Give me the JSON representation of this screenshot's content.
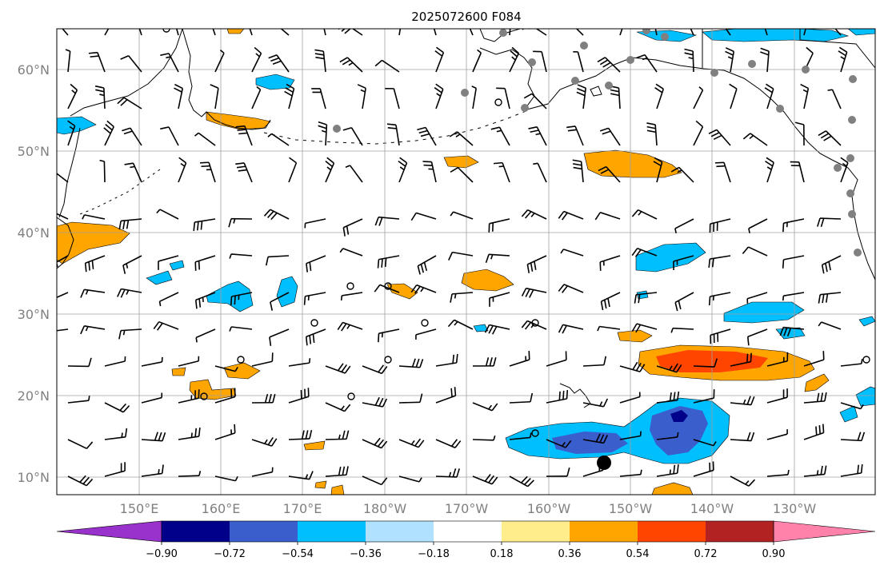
{
  "title": "2025072600 F084",
  "map": {
    "lat_labels": [
      "10°N",
      "20°N",
      "30°N",
      "40°N",
      "50°N",
      "60°N"
    ],
    "lon_labels": [
      "150°E",
      "160°E",
      "170°E",
      "180°W",
      "170°W",
      "160°W",
      "150°W",
      "140°W",
      "130°W"
    ],
    "grid": true
  },
  "colorbar": {
    "tick_labels": [
      "−0.90",
      "−0.72",
      "−0.54",
      "−0.36",
      "−0.18",
      "0.18",
      "0.36",
      "0.54",
      "0.72",
      "0.90"
    ],
    "colors": [
      "#9932cc",
      "#00008b",
      "#3a5fcd",
      "#00bfff",
      "#b0e2ff",
      "#ffffff",
      "#ffec8b",
      "#ffa500",
      "#ff4500",
      "#b22222",
      "#ff82ab"
    ],
    "extend": "both"
  },
  "colors": {
    "coast": "#000000",
    "grid": "#a0a0a0",
    "station": "#808080"
  }
}
